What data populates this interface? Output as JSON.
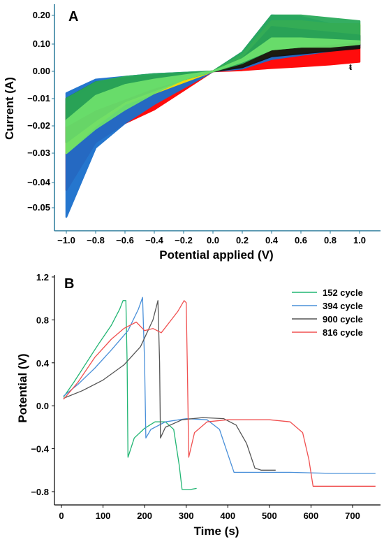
{
  "chart_data": [
    {
      "panel": "A",
      "type": "line",
      "xlabel": "Potential applied (V)",
      "ylabel": "Current (A)",
      "x_ticks": [
        "−1.0",
        "−0.8",
        "−0.6",
        "−0.4",
        "−0.2",
        "0.0",
        "0.2",
        "0.4",
        "0.6",
        "0.8",
        "1.0"
      ],
      "y_ticks": [
        "0.20",
        "0.10",
        "0.00",
        "−0.01",
        "−0.02",
        "−0.03",
        "−0.04",
        "−0.05"
      ],
      "xlim": [
        -1.05,
        1.05
      ],
      "grid": false,
      "legend": "none",
      "series": [
        {
          "color": "#ff0000",
          "lower": [
            [
              -1.0,
              -0.043
            ],
            [
              -0.8,
              -0.026
            ],
            [
              -0.6,
              -0.019
            ],
            [
              -0.4,
              -0.014
            ],
            [
              -0.2,
              -0.007
            ],
            [
              0.0,
              0.0
            ],
            [
              0.2,
              0.004
            ],
            [
              0.4,
              0.012
            ],
            [
              0.6,
              0.018
            ],
            [
              0.8,
              0.025
            ],
            [
              1.0,
              0.035
            ]
          ],
          "upper": [
            [
              -1.0,
              -0.012
            ],
            [
              -0.8,
              -0.006
            ],
            [
              -0.6,
              -0.003
            ],
            [
              -0.4,
              -0.002
            ],
            [
              -0.2,
              -0.001
            ],
            [
              0.0,
              0.0
            ],
            [
              0.2,
              0.025
            ],
            [
              0.4,
              0.11
            ],
            [
              0.6,
              0.1
            ],
            [
              0.8,
              0.09
            ],
            [
              1.0,
              0.11
            ]
          ]
        },
        {
          "color": "#1a6fcc",
          "lower": [
            [
              -1.0,
              -0.054
            ],
            [
              -0.8,
              -0.028
            ],
            [
              -0.6,
              -0.019
            ],
            [
              -0.4,
              -0.012
            ],
            [
              -0.2,
              -0.006
            ],
            [
              0.0,
              0.0
            ],
            [
              0.2,
              0.01
            ],
            [
              0.4,
              0.045
            ],
            [
              0.6,
              0.06
            ],
            [
              0.8,
              0.075
            ],
            [
              1.0,
              0.095
            ]
          ],
          "upper": [
            [
              -1.0,
              -0.008
            ],
            [
              -0.8,
              -0.003
            ],
            [
              -0.6,
              -0.002
            ],
            [
              -0.4,
              -0.001
            ],
            [
              -0.2,
              -0.0005
            ],
            [
              0.0,
              0.0
            ],
            [
              0.2,
              0.07
            ],
            [
              0.4,
              0.2
            ],
            [
              0.6,
              0.195
            ],
            [
              0.8,
              0.17
            ],
            [
              1.0,
              0.165
            ]
          ]
        },
        {
          "color": "#ffe000",
          "lower": [
            [
              -1.0,
              -0.03
            ],
            [
              -0.8,
              -0.02
            ],
            [
              -0.6,
              -0.012
            ],
            [
              -0.4,
              -0.008
            ],
            [
              -0.2,
              -0.004
            ],
            [
              0.0,
              0.0
            ],
            [
              0.2,
              0.02
            ],
            [
              0.4,
              0.06
            ],
            [
              0.6,
              0.07
            ],
            [
              0.8,
              0.08
            ],
            [
              1.0,
              0.1
            ]
          ],
          "upper": [
            [
              -1.0,
              -0.012
            ],
            [
              -0.8,
              -0.005
            ],
            [
              -0.6,
              -0.003
            ],
            [
              -0.4,
              -0.002
            ],
            [
              -0.2,
              -0.001
            ],
            [
              0.0,
              0.0
            ],
            [
              0.2,
              0.06
            ],
            [
              0.4,
              0.18
            ],
            [
              0.6,
              0.18
            ],
            [
              0.8,
              0.17
            ],
            [
              1.0,
              0.17
            ]
          ]
        },
        {
          "color": "#111111",
          "lower": [
            [
              -1.0,
              -0.026
            ],
            [
              -0.8,
              -0.018
            ],
            [
              -0.6,
              -0.011
            ],
            [
              -0.4,
              -0.007
            ],
            [
              -0.2,
              -0.003
            ],
            [
              0.0,
              0.0
            ],
            [
              0.2,
              0.015
            ],
            [
              0.4,
              0.055
            ],
            [
              0.6,
              0.065
            ],
            [
              0.8,
              0.075
            ],
            [
              1.0,
              0.085
            ]
          ],
          "upper": [
            [
              -1.0,
              -0.01
            ],
            [
              -0.8,
              -0.004
            ],
            [
              -0.6,
              -0.0025
            ],
            [
              -0.4,
              -0.0015
            ],
            [
              -0.2,
              -0.0008
            ],
            [
              0.0,
              0.0
            ],
            [
              0.2,
              0.045
            ],
            [
              0.4,
              0.16
            ],
            [
              0.6,
              0.15
            ],
            [
              0.8,
              0.14
            ],
            [
              1.0,
              0.13
            ]
          ]
        },
        {
          "color": "#2aaa5a",
          "lower": [
            [
              -1.0,
              -0.02
            ],
            [
              -0.8,
              -0.014
            ],
            [
              -0.6,
              -0.01
            ],
            [
              -0.4,
              -0.006
            ],
            [
              -0.2,
              -0.003
            ],
            [
              0.0,
              0.0
            ],
            [
              0.2,
              0.03
            ],
            [
              0.4,
              0.08
            ],
            [
              0.6,
              0.09
            ],
            [
              0.8,
              0.1
            ],
            [
              1.0,
              0.11
            ]
          ],
          "upper": [
            [
              -1.0,
              -0.01
            ],
            [
              -0.8,
              -0.004
            ],
            [
              -0.6,
              -0.002
            ],
            [
              -0.4,
              -0.001
            ],
            [
              -0.2,
              -0.0005
            ],
            [
              0.0,
              0.0
            ],
            [
              0.2,
              0.07
            ],
            [
              0.4,
              0.2
            ],
            [
              0.6,
              0.2
            ],
            [
              0.8,
              0.19
            ],
            [
              1.0,
              0.18
            ]
          ]
        },
        {
          "color": "#6ce06c",
          "lower": [
            [
              -1.0,
              -0.03
            ],
            [
              -0.8,
              -0.021
            ],
            [
              -0.6,
              -0.014
            ],
            [
              -0.4,
              -0.008
            ],
            [
              -0.2,
              -0.003
            ],
            [
              0.0,
              0.0
            ],
            [
              0.2,
              0.035
            ],
            [
              0.4,
              0.08
            ],
            [
              0.6,
              0.09
            ],
            [
              0.8,
              0.09
            ],
            [
              1.0,
              0.1
            ]
          ],
          "upper": [
            [
              -1.0,
              -0.018
            ],
            [
              -0.8,
              -0.009
            ],
            [
              -0.6,
              -0.005
            ],
            [
              -0.4,
              -0.003
            ],
            [
              -0.2,
              -0.0015
            ],
            [
              0.0,
              0.0
            ],
            [
              0.2,
              0.045
            ],
            [
              0.4,
              0.12
            ],
            [
              0.6,
              0.12
            ],
            [
              0.8,
              0.115
            ],
            [
              1.0,
              0.11
            ]
          ]
        }
      ]
    },
    {
      "panel": "B",
      "type": "line",
      "xlabel": "Time (s)",
      "ylabel": "Potential (V)",
      "xlim": [
        -10,
        760
      ],
      "ylim": [
        -0.9,
        1.2
      ],
      "x_ticks": [
        0,
        100,
        200,
        300,
        400,
        500,
        600,
        700
      ],
      "y_ticks": [
        "1.2",
        "0.8",
        "0.4",
        "0.0",
        "−0.4",
        "−0.8"
      ],
      "grid": false,
      "legend": "top-right",
      "series": [
        {
          "name": "152  cycle",
          "color": "#21b573",
          "points": [
            [
              5,
              0.08
            ],
            [
              30,
              0.22
            ],
            [
              60,
              0.4
            ],
            [
              90,
              0.58
            ],
            [
              120,
              0.75
            ],
            [
              140,
              0.9
            ],
            [
              148,
              0.98
            ],
            [
              155,
              0.98
            ],
            [
              158,
              0.4
            ],
            [
              160,
              -0.48
            ],
            [
              175,
              -0.3
            ],
            [
              200,
              -0.21
            ],
            [
              225,
              -0.15
            ],
            [
              250,
              -0.15
            ],
            [
              270,
              -0.22
            ],
            [
              283,
              -0.55
            ],
            [
              290,
              -0.78
            ],
            [
              310,
              -0.78
            ],
            [
              325,
              -0.77
            ]
          ]
        },
        {
          "name": "394  cycle",
          "color": "#4a90d9",
          "points": [
            [
              5,
              0.09
            ],
            [
              40,
              0.2
            ],
            [
              80,
              0.35
            ],
            [
              120,
              0.52
            ],
            [
              160,
              0.7
            ],
            [
              185,
              0.9
            ],
            [
              195,
              1.01
            ],
            [
              200,
              0.4
            ],
            [
              203,
              -0.3
            ],
            [
              215,
              -0.22
            ],
            [
              250,
              -0.15
            ],
            [
              300,
              -0.12
            ],
            [
              350,
              -0.13
            ],
            [
              380,
              -0.22
            ],
            [
              400,
              -0.45
            ],
            [
              415,
              -0.62
            ],
            [
              450,
              -0.62
            ],
            [
              550,
              -0.62
            ],
            [
              650,
              -0.63
            ],
            [
              755,
              -0.63
            ]
          ]
        },
        {
          "name": "900  cycle",
          "color": "#555555",
          "points": [
            [
              5,
              0.07
            ],
            [
              50,
              0.14
            ],
            [
              100,
              0.24
            ],
            [
              150,
              0.38
            ],
            [
              190,
              0.55
            ],
            [
              220,
              0.8
            ],
            [
              232,
              0.98
            ],
            [
              236,
              0.4
            ],
            [
              238,
              -0.3
            ],
            [
              250,
              -0.2
            ],
            [
              290,
              -0.13
            ],
            [
              340,
              -0.11
            ],
            [
              390,
              -0.12
            ],
            [
              420,
              -0.18
            ],
            [
              445,
              -0.35
            ],
            [
              465,
              -0.58
            ],
            [
              480,
              -0.6
            ],
            [
              515,
              -0.6
            ]
          ]
        },
        {
          "name": "816  cycle",
          "color": "#f05050",
          "points": [
            [
              5,
              0.06
            ],
            [
              40,
              0.22
            ],
            [
              80,
              0.45
            ],
            [
              120,
              0.62
            ],
            [
              150,
              0.72
            ],
            [
              180,
              0.78
            ],
            [
              200,
              0.7
            ],
            [
              220,
              0.72
            ],
            [
              240,
              0.68
            ],
            [
              260,
              0.78
            ],
            [
              280,
              0.88
            ],
            [
              295,
              0.98
            ],
            [
              300,
              0.96
            ],
            [
              303,
              0.3
            ],
            [
              306,
              -0.48
            ],
            [
              320,
              -0.25
            ],
            [
              350,
              -0.15
            ],
            [
              400,
              -0.13
            ],
            [
              450,
              -0.13
            ],
            [
              500,
              -0.13
            ],
            [
              550,
              -0.15
            ],
            [
              580,
              -0.25
            ],
            [
              595,
              -0.5
            ],
            [
              605,
              -0.75
            ],
            [
              650,
              -0.75
            ],
            [
              700,
              -0.75
            ],
            [
              755,
              -0.75
            ]
          ]
        }
      ]
    }
  ],
  "panels": {
    "a": {
      "letter": "A"
    },
    "b": {
      "letter": "B"
    }
  }
}
